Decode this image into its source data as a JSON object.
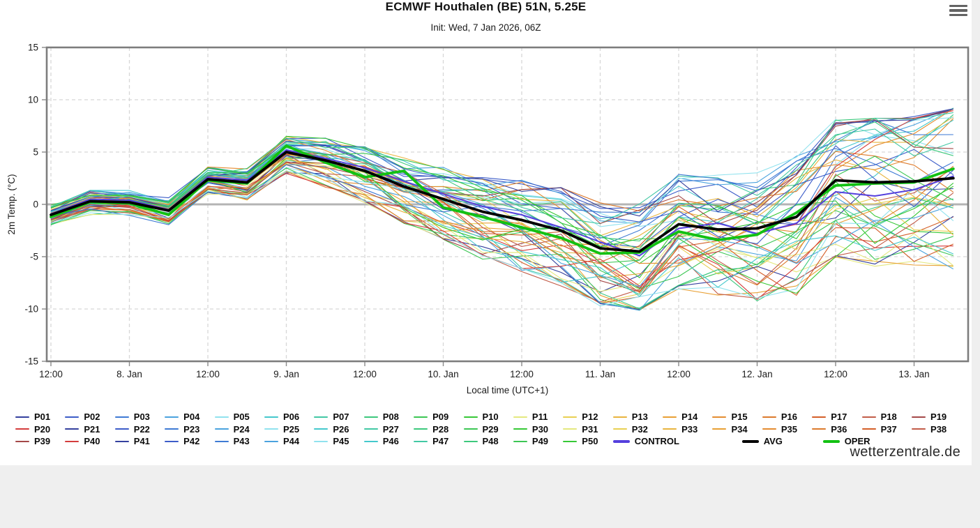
{
  "header": {
    "title": "ECMWF Houthalen (BE) 51N, 5.25E",
    "subtitle": "Init: Wed, 7 Jan 2026, 06Z"
  },
  "menu": {
    "icon": "hamburger-menu-icon"
  },
  "footer": {
    "watermark": "wetterzentrale.de"
  },
  "chart_data": {
    "type": "line",
    "title": "ECMWF Houthalen (BE) 51N, 5.25E",
    "xlabel": "Local time (UTC+1)",
    "ylabel": "2m Temp. (°C)",
    "ylim": [
      -15,
      15
    ],
    "yticks": [
      -15,
      -10,
      -5,
      0,
      5,
      10,
      15
    ],
    "grid": "dashed",
    "zero_line": true,
    "legend_position": "bottom",
    "x_hours": [
      0,
      6,
      12,
      18,
      24,
      30,
      36,
      42,
      48,
      54,
      60,
      66,
      72,
      78,
      84,
      90,
      96,
      102,
      108,
      114,
      120,
      126,
      132,
      138
    ],
    "xtick_hours": [
      0,
      12,
      24,
      36,
      48,
      60,
      72,
      84,
      96,
      108,
      120,
      132
    ],
    "xtick_labels": [
      "12:00",
      "8. Jan",
      "12:00",
      "9. Jan",
      "12:00",
      "10. Jan",
      "12:00",
      "11. Jan",
      "12:00",
      "12. Jan",
      "12:00",
      "13. Jan"
    ],
    "series": [
      {
        "name": "AVG",
        "color": "#000000",
        "width": 3.8,
        "values": [
          -1.0,
          0.3,
          0.2,
          -0.6,
          2.4,
          2.1,
          5.0,
          4.2,
          3.2,
          1.7,
          0.5,
          -0.7,
          -1.5,
          -2.5,
          -4.2,
          -4.5,
          -1.9,
          -2.4,
          -2.3,
          -1.2,
          2.3,
          2.1,
          2.2,
          2.5
        ]
      },
      {
        "name": "OPER",
        "color": "#13c113",
        "width": 3.8,
        "values": [
          -1.2,
          0.2,
          0.1,
          -1.0,
          2.3,
          2.0,
          5.6,
          4.0,
          2.6,
          3.2,
          -0.3,
          -1.2,
          -2.2,
          -3.2,
          -4.7,
          -4.6,
          -2.6,
          -3.4,
          -2.9,
          -0.8,
          1.8,
          2.0,
          2.1,
          3.4
        ]
      },
      {
        "name": "CONTROL",
        "color": "#5540dd",
        "width": 2.0,
        "values": [
          -0.9,
          0.5,
          0.4,
          -0.5,
          2.6,
          2.3,
          5.2,
          4.4,
          3.5,
          2.2,
          1.0,
          -0.2,
          -1.0,
          -2.2,
          -3.6,
          -4.9,
          -2.3,
          -1.8,
          -2.8,
          -1.8,
          1.2,
          0.8,
          1.4,
          2.7
        ]
      }
    ],
    "ensemble": {
      "count": 50,
      "label_prefix": "P",
      "line_width": 1.1,
      "spread": [
        0.8,
        0.8,
        0.9,
        1.0,
        1.0,
        1.2,
        1.4,
        1.9,
        2.2,
        2.6,
        3.0,
        3.3,
        3.6,
        3.9,
        4.1,
        4.3,
        4.6,
        5.0,
        5.2,
        5.6,
        5.6,
        6.0,
        6.0,
        6.5
      ],
      "palette": [
        "#34409e",
        "#3c5cc8",
        "#3e7ad4",
        "#4aa2de",
        "#90e2ee",
        "#44c8cc",
        "#42c8a4",
        "#3cc87c",
        "#3cc654",
        "#36c836",
        "#e4e87e",
        "#e8d052",
        "#e8b43e",
        "#e8a034",
        "#e48c30",
        "#dc7a2c",
        "#d45e28",
        "#c25c48",
        "#a44848",
        "#d43c3c"
      ]
    },
    "colors": {
      "grid": "#d7d7d7",
      "zero_line": "#b4b4b4",
      "border": "#7d7d7d",
      "tick": "#8a8a8a"
    }
  },
  "legend": {
    "rows": [
      [
        "P01",
        "P02",
        "P03",
        "P04",
        "P05",
        "P06",
        "P07",
        "P08",
        "P09",
        "P10",
        "P11",
        "P12",
        "P13",
        "P14",
        "P15",
        "P16",
        "P17",
        "P18",
        "P19"
      ],
      [
        "P20",
        "P21",
        "P22",
        "P23",
        "P24",
        "P25",
        "P26",
        "P27",
        "P28",
        "P29",
        "P30",
        "P31",
        "P32",
        "P33",
        "P34",
        "P35",
        "P36",
        "P37",
        "P38"
      ],
      [
        "P39",
        "P40",
        "P41",
        "P42",
        "P43",
        "P44",
        "P45",
        "P46",
        "P47",
        "P48",
        "P49",
        "P50",
        "CONTROL",
        "AVG",
        "OPER"
      ]
    ]
  }
}
